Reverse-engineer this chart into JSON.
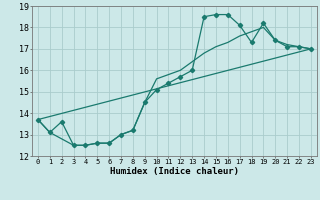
{
  "xlabel": "Humidex (Indice chaleur)",
  "bg_color": "#cce8e8",
  "grid_color": "#aacccc",
  "line_color": "#1a7a6e",
  "xlim": [
    -0.5,
    23.5
  ],
  "ylim": [
    12,
    19
  ],
  "yticks": [
    12,
    13,
    14,
    15,
    16,
    17,
    18,
    19
  ],
  "xticks": [
    0,
    1,
    2,
    3,
    4,
    5,
    6,
    7,
    8,
    9,
    10,
    11,
    12,
    13,
    14,
    15,
    16,
    17,
    18,
    19,
    20,
    21,
    22,
    23
  ],
  "series1_x": [
    0,
    1,
    2,
    3,
    4,
    5,
    6,
    7,
    8,
    9,
    10,
    11,
    12,
    13,
    14,
    15,
    16,
    17,
    18,
    19,
    20,
    21,
    22,
    23
  ],
  "series1_y": [
    13.7,
    13.1,
    13.6,
    12.5,
    12.5,
    12.6,
    12.6,
    13.0,
    13.2,
    14.5,
    15.1,
    15.4,
    15.7,
    16.0,
    18.5,
    18.6,
    18.6,
    18.1,
    17.3,
    18.2,
    17.4,
    17.1,
    17.1,
    17.0
  ],
  "series2_x": [
    0,
    1,
    3,
    4,
    5,
    6,
    7,
    8,
    9,
    10,
    11,
    12,
    13,
    14,
    15,
    16,
    17,
    18,
    19,
    20,
    21,
    22,
    23
  ],
  "series2_y": [
    13.7,
    13.1,
    12.5,
    12.5,
    12.6,
    12.6,
    13.0,
    13.2,
    14.5,
    15.6,
    15.8,
    16.0,
    16.4,
    16.8,
    17.1,
    17.3,
    17.6,
    17.8,
    18.0,
    17.4,
    17.2,
    17.1,
    17.0
  ],
  "series3_x": [
    0,
    23
  ],
  "series3_y": [
    13.7,
    17.0
  ],
  "linewidth": 0.9,
  "markersize": 2.2
}
